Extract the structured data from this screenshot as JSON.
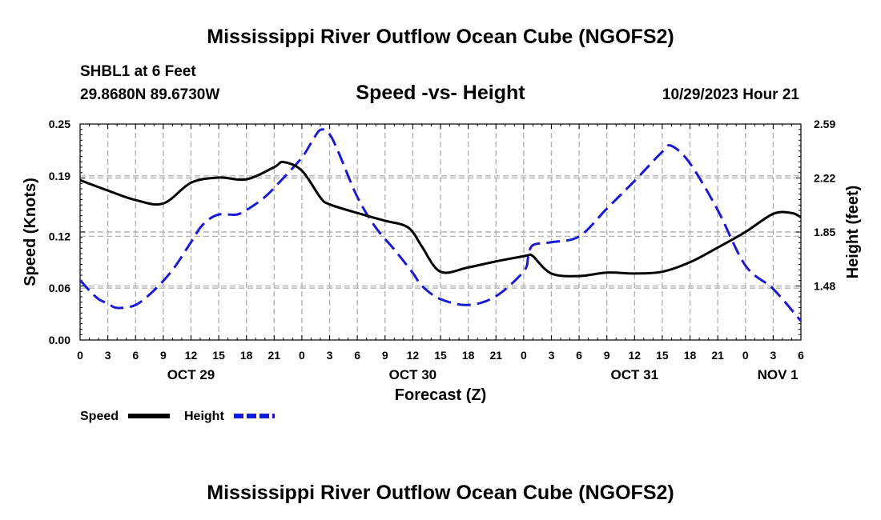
{
  "chart_data": {
    "type": "line",
    "title": "Mississippi River Outflow Ocean Cube (NGOFS2)",
    "title_repeat": "Mississippi River Outflow Ocean Cube (NGOFS2)",
    "subtitle": "Speed -vs- Height",
    "station": "SHBL1 at 6 Feet",
    "location": "29.8680N  89.6730W",
    "datetime": "10/29/2023 Hour 21",
    "xlabel": "Forecast (Z)",
    "ylabel_left": "Speed (Knots)",
    "ylabel_right": "Height (feet)",
    "x_range_hours": [
      0,
      78
    ],
    "y_left_range": [
      0,
      0.25
    ],
    "y_right_range": [
      1.11,
      2.59
    ],
    "y_left_ticks": [
      "0.00",
      "0.06",
      "0.12",
      "0.19",
      "0.25"
    ],
    "y_right_ticks": [
      "1.48",
      "1.85",
      "2.22",
      "2.59"
    ],
    "x_tick_labels": [
      "0",
      "3",
      "6",
      "9",
      "12",
      "15",
      "18",
      "21",
      "0",
      "3",
      "6",
      "9",
      "12",
      "15",
      "18",
      "21",
      "0",
      "3",
      "6",
      "9",
      "12",
      "15",
      "18",
      "21",
      "0",
      "3",
      "6"
    ],
    "date_labels": [
      {
        "label": "OCT 29",
        "hour": 12
      },
      {
        "label": "OCT 30",
        "hour": 36
      },
      {
        "label": "OCT 31",
        "hour": 60
      },
      {
        "label": "NOV 1",
        "hour": 75.5
      }
    ],
    "grid": true,
    "series": [
      {
        "name": "Speed",
        "axis": "left",
        "color": "#000000",
        "dash": "solid",
        "x": [
          0,
          3,
          6,
          9,
          12,
          15,
          18,
          21,
          22,
          24,
          26,
          27,
          30,
          33,
          35,
          36,
          37,
          39,
          42,
          45,
          48,
          48.5,
          49,
          51,
          54,
          57,
          60,
          63,
          66,
          69,
          72,
          75,
          77,
          78
        ],
        "values": [
          0.185,
          0.173,
          0.162,
          0.158,
          0.182,
          0.188,
          0.186,
          0.2,
          0.206,
          0.196,
          0.165,
          0.157,
          0.147,
          0.138,
          0.133,
          0.125,
          0.108,
          0.079,
          0.084,
          0.091,
          0.097,
          0.098,
          0.097,
          0.077,
          0.074,
          0.078,
          0.077,
          0.079,
          0.09,
          0.107,
          0.125,
          0.146,
          0.147,
          0.142
        ]
      },
      {
        "name": "Height",
        "axis": "right",
        "color": "#1a1ad6",
        "dash": "dashed",
        "x": [
          0,
          1,
          2,
          3,
          4,
          6,
          8,
          10,
          12,
          13,
          14,
          15,
          16,
          17,
          18,
          20,
          22,
          24,
          25,
          26,
          27,
          28,
          30,
          32,
          34,
          36,
          37,
          39,
          42,
          45,
          48,
          48.5,
          49,
          51,
          54,
          57,
          60,
          63,
          64,
          66,
          69,
          72,
          75,
          78
        ],
        "values": [
          1.52,
          1.45,
          1.39,
          1.36,
          1.33,
          1.35,
          1.45,
          1.59,
          1.78,
          1.88,
          1.94,
          1.97,
          1.97,
          1.97,
          2.0,
          2.09,
          2.22,
          2.36,
          2.46,
          2.55,
          2.52,
          2.39,
          2.09,
          1.88,
          1.73,
          1.57,
          1.48,
          1.39,
          1.35,
          1.41,
          1.58,
          1.68,
          1.76,
          1.78,
          1.82,
          2.01,
          2.2,
          2.4,
          2.44,
          2.32,
          2.0,
          1.62,
          1.46,
          1.24
        ]
      }
    ],
    "legend": [
      {
        "label": "Speed",
        "color": "#000000",
        "dash": "solid"
      },
      {
        "label": "Height",
        "color": "#1a1ad6",
        "dash": "dashed"
      }
    ]
  }
}
